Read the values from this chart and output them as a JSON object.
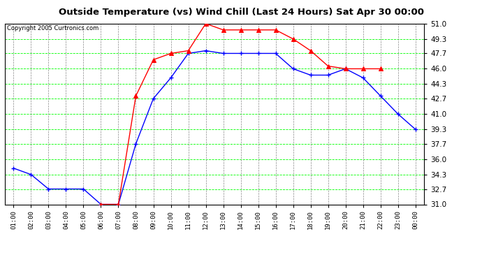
{
  "title": "Outside Temperature (vs) Wind Chill (Last 24 Hours) Sat Apr 30 00:00",
  "copyright": "Copyright 2005 Curtronics.com",
  "x_labels": [
    "01:00",
    "02:00",
    "03:00",
    "04:00",
    "05:00",
    "06:00",
    "07:00",
    "08:00",
    "09:00",
    "10:00",
    "11:00",
    "12:00",
    "13:00",
    "14:00",
    "15:00",
    "16:00",
    "17:00",
    "18:00",
    "19:00",
    "20:00",
    "21:00",
    "22:00",
    "23:00",
    "00:00"
  ],
  "outside_temp": [
    35.0,
    34.3,
    32.7,
    32.7,
    32.7,
    31.0,
    31.0,
    37.7,
    42.7,
    45.0,
    47.7,
    48.0,
    47.7,
    47.7,
    47.7,
    47.7,
    46.0,
    45.3,
    45.3,
    46.0,
    45.0,
    43.0,
    41.0,
    39.3
  ],
  "wind_chill": [
    null,
    null,
    null,
    null,
    null,
    31.0,
    31.0,
    43.0,
    47.0,
    47.7,
    48.0,
    51.0,
    50.3,
    50.3,
    50.3,
    50.3,
    49.3,
    48.0,
    46.3,
    46.0,
    46.0,
    46.0,
    null,
    null
  ],
  "temp_color": "#0000FF",
  "windchill_color": "#FF0000",
  "bg_color": "#FFFFFF",
  "plot_bg_color": "#FFFFFF",
  "grid_color_h": "#00FF00",
  "grid_color_v": "#888888",
  "title_color": "#000000",
  "ylim_min": 31.0,
  "ylim_max": 51.0,
  "yticks": [
    31.0,
    32.7,
    34.3,
    36.0,
    37.7,
    39.3,
    41.0,
    42.7,
    44.3,
    46.0,
    47.7,
    49.3,
    51.0
  ]
}
